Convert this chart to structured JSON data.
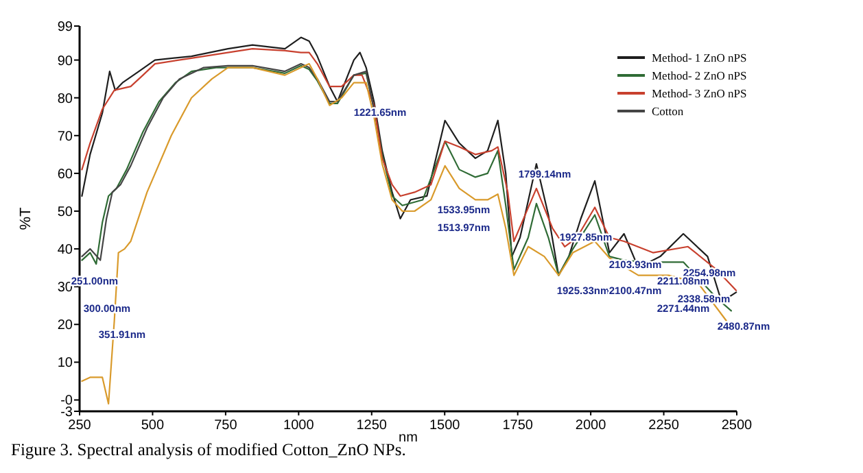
{
  "chart_data": {
    "type": "line",
    "xlabel": "nm",
    "ylabel": "%T",
    "xlim": [
      250,
      2500
    ],
    "xticks": [
      250,
      500,
      750,
      1000,
      1250,
      1500,
      1750,
      2000,
      2250,
      2500
    ],
    "ylim": [
      -3,
      99
    ],
    "yticks": [
      -3,
      {
        "value": 0,
        "label": "-0"
      },
      10,
      20,
      30,
      40,
      50,
      60,
      70,
      80,
      90,
      99
    ],
    "grid": false,
    "legend": "top right",
    "marker": "none",
    "line_style": "solid",
    "series": [
      {
        "name": "Method- 1 ZnO nPS",
        "color": "#1e1e1e",
        "x": [
          258,
          286,
          328,
          353,
          372,
          397,
          453,
          508,
          633,
          758,
          842,
          953,
          1008,
          1036,
          1064,
          1106,
          1133,
          1189,
          1210,
          1231,
          1258,
          1286,
          1320,
          1348,
          1383,
          1439,
          1501,
          1550,
          1605,
          1647,
          1682,
          1709,
          1730,
          1758,
          1814,
          1855,
          1890,
          1925,
          1966,
          2014,
          2064,
          2114,
          2163,
          2238,
          2317,
          2400,
          2448,
          2498
        ],
        "values": [
          54,
          65,
          76,
          87,
          82,
          84,
          87,
          90,
          91,
          93,
          94,
          93,
          96,
          95,
          91,
          83,
          79,
          90,
          92,
          88,
          79,
          66,
          55,
          48,
          53,
          54,
          74,
          68,
          64,
          66,
          74,
          60,
          38,
          43,
          62.5,
          49,
          33,
          38,
          48,
          58,
          39,
          44,
          35,
          38,
          44,
          38,
          26,
          28.5
        ]
      },
      {
        "name": "Method- 2 ZnO nPS",
        "color": "#2f6b35",
        "x": [
          258,
          286,
          307,
          328,
          349,
          376,
          411,
          467,
          522,
          578,
          633,
          717,
          758,
          842,
          953,
          1008,
          1036,
          1064,
          1106,
          1133,
          1189,
          1231,
          1258,
          1286,
          1320,
          1355,
          1425,
          1501,
          1550,
          1605,
          1647,
          1682,
          1709,
          1737,
          1786,
          1814,
          1855,
          1890,
          1939,
          2014,
          2064,
          2114,
          2188,
          2317,
          2431,
          2481
        ],
        "values": [
          37,
          39,
          36,
          47,
          54,
          56,
          61,
          71,
          79,
          84,
          87,
          88,
          88,
          88,
          86.5,
          88.5,
          87.5,
          84.5,
          78.5,
          78.5,
          86,
          86.5,
          77,
          65,
          54,
          51.5,
          53,
          68.5,
          61,
          59,
          60,
          66,
          51.5,
          34.5,
          43,
          52,
          43,
          33,
          40,
          49,
          38,
          37,
          36.5,
          36.5,
          27,
          23.6
        ]
      },
      {
        "name": "Method- 3 ZnO nPS",
        "color": "#c8402e",
        "x": [
          258,
          286,
          328,
          369,
          425,
          467,
          508,
          633,
          758,
          842,
          953,
          1008,
          1036,
          1064,
          1106,
          1147,
          1189,
          1217,
          1258,
          1286,
          1320,
          1348,
          1397,
          1453,
          1501,
          1550,
          1605,
          1661,
          1682,
          1716,
          1737,
          1814,
          1869,
          1911,
          1953,
          2014,
          2064,
          2114,
          2213,
          2333,
          2431,
          2498
        ],
        "values": [
          61,
          68,
          77,
          82,
          83,
          86,
          89,
          90.5,
          92,
          93,
          92.5,
          92,
          92,
          89,
          83,
          83,
          86,
          86,
          78,
          64,
          57,
          54,
          55,
          57,
          68.5,
          67,
          65,
          66,
          67,
          55,
          42,
          56,
          45.5,
          40.6,
          43,
          51,
          43,
          42,
          39,
          40.6,
          34.5,
          29
        ]
      },
      {
        "name": "Cotton",
        "color": "#454545",
        "x": [
          258,
          286,
          321,
          342,
          362,
          390,
          425,
          481,
          536,
          592,
          675,
          758,
          842,
          953,
          1008,
          1036,
          1064,
          1106,
          1133,
          1189,
          1231,
          1258
        ],
        "values": [
          38,
          40,
          37,
          48,
          55,
          57,
          62,
          72,
          80,
          85,
          88,
          88.5,
          88.5,
          87,
          89,
          88,
          85,
          79,
          79,
          86,
          87,
          77
        ]
      },
      {
        "color": "#d99a2b",
        "x": [
          258,
          286,
          328,
          349,
          369,
          383,
          404,
          425,
          481,
          564,
          633,
          703,
          758,
          842,
          953,
          1008,
          1036,
          1064,
          1106,
          1147,
          1189,
          1231,
          1258,
          1286,
          1320,
          1355,
          1397,
          1453,
          1501,
          1550,
          1605,
          1647,
          1682,
          1709,
          1737,
          1786,
          1841,
          1890,
          1939,
          2014,
          2064,
          2163,
          2267,
          2367,
          2464
        ],
        "values": [
          5,
          6,
          6,
          -1,
          21,
          39,
          40,
          42,
          55,
          70,
          80,
          85,
          88,
          88,
          86,
          88,
          89,
          85,
          78,
          80,
          84,
          84,
          75,
          62.5,
          53,
          50,
          50,
          53,
          62,
          56,
          53,
          53,
          54.5,
          45.5,
          33,
          40.6,
          38,
          33,
          39,
          42,
          37.6,
          33,
          33,
          31,
          21
        ]
      }
    ],
    "annotations": [
      "251.00nm",
      "300.00nm",
      "351.91nm",
      "1221.65nm",
      "1533.95nm",
      "1513.97nm",
      "1799.14nm",
      "1927.85nm",
      "1925.33nm",
      "2100.47nm",
      "2103.93nm",
      "2254.98nm",
      "2211.08nm",
      "2338.58nm",
      "2271.44nm",
      "2480.87nm",
      "Figure 3. Spectral analysis of modified Cotton_ZnO NPs."
    ]
  }
}
